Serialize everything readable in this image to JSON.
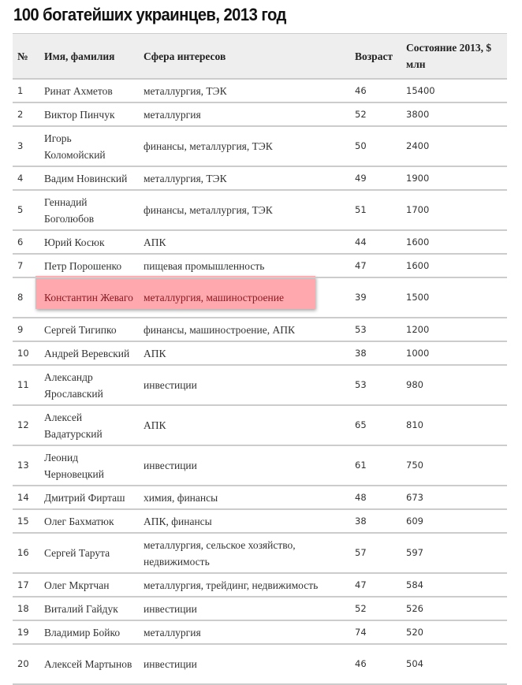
{
  "title": "100 богатейших украинцев, 2013 год",
  "highlight_color": "#ffa8ae",
  "table": {
    "headers": [
      "№",
      "Имя, фамилия",
      "Сфера интересов",
      "Возраст",
      "Состояние 2013, $ млн"
    ],
    "rows": [
      {
        "n": "1",
        "name": "Ринат Ахметов",
        "sphere": "металлургия, ТЭК",
        "age": "46",
        "wealth": "15400"
      },
      {
        "n": "2",
        "name": "Виктор Пинчук",
        "sphere": "металлургия",
        "age": "52",
        "wealth": "3800"
      },
      {
        "n": "3",
        "name": "Игорь Коломойский",
        "sphere": "финансы, металлургия, ТЭК",
        "age": "50",
        "wealth": "2400"
      },
      {
        "n": "4",
        "name": "Вадим Новинский",
        "sphere": "металлургия, ТЭК",
        "age": "49",
        "wealth": "1900"
      },
      {
        "n": "5",
        "name": "Геннадий Боголюбов",
        "sphere": "финансы, металлургия, ТЭК",
        "age": "51",
        "wealth": "1700"
      },
      {
        "n": "6",
        "name": "Юрий Косюк",
        "sphere": "АПК",
        "age": "44",
        "wealth": "1600"
      },
      {
        "n": "7",
        "name": "Петр Порошенко",
        "sphere": "пищевая промышленность",
        "age": "47",
        "wealth": "1600"
      },
      {
        "n": "8",
        "name": "Константин Жеваго",
        "sphere": "металлургия, машиностроение",
        "age": "39",
        "wealth": "1500",
        "highlighted": true
      },
      {
        "n": "9",
        "name": "Сергей Тигипко",
        "sphere": "финансы, машиностроение, АПК",
        "age": "53",
        "wealth": "1200"
      },
      {
        "n": "10",
        "name": "Андрей Веревский",
        "sphere": "АПК",
        "age": "38",
        "wealth": "1000"
      },
      {
        "n": "11",
        "name": "Александр Ярославский",
        "sphere": "инвестиции",
        "age": "53",
        "wealth": "980"
      },
      {
        "n": "12",
        "name": "Алексей Вадатурский",
        "sphere": "АПК",
        "age": "65",
        "wealth": "810"
      },
      {
        "n": "13",
        "name": "Леонид Черновецкий",
        "sphere": "инвестиции",
        "age": "61",
        "wealth": "750"
      },
      {
        "n": "14",
        "name": "Дмитрий Фирташ",
        "sphere": "химия, финансы",
        "age": "48",
        "wealth": "673"
      },
      {
        "n": "15",
        "name": "Олег Бахматюк",
        "sphere": "АПК, финансы",
        "age": "38",
        "wealth": "609"
      },
      {
        "n": "16",
        "name": "Сергей Тарута",
        "sphere": "металлургия, сельское хозяйство, недвижимость",
        "age": "57",
        "wealth": "597"
      },
      {
        "n": "17",
        "name": "Олег Мкртчан",
        "sphere": "металлургия, трейдинг, недвижимость",
        "age": "47",
        "wealth": "584"
      },
      {
        "n": "18",
        "name": "Виталий Гайдук",
        "sphere": "инвестиции",
        "age": "52",
        "wealth": "526"
      },
      {
        "n": "19",
        "name": "Владимир Бойко",
        "sphere": "металлургия",
        "age": "74",
        "wealth": "520"
      },
      {
        "n": "20",
        "name": "Алексей Мартынов",
        "sphere": "инвестиции",
        "age": "46",
        "wealth": "504"
      }
    ]
  }
}
